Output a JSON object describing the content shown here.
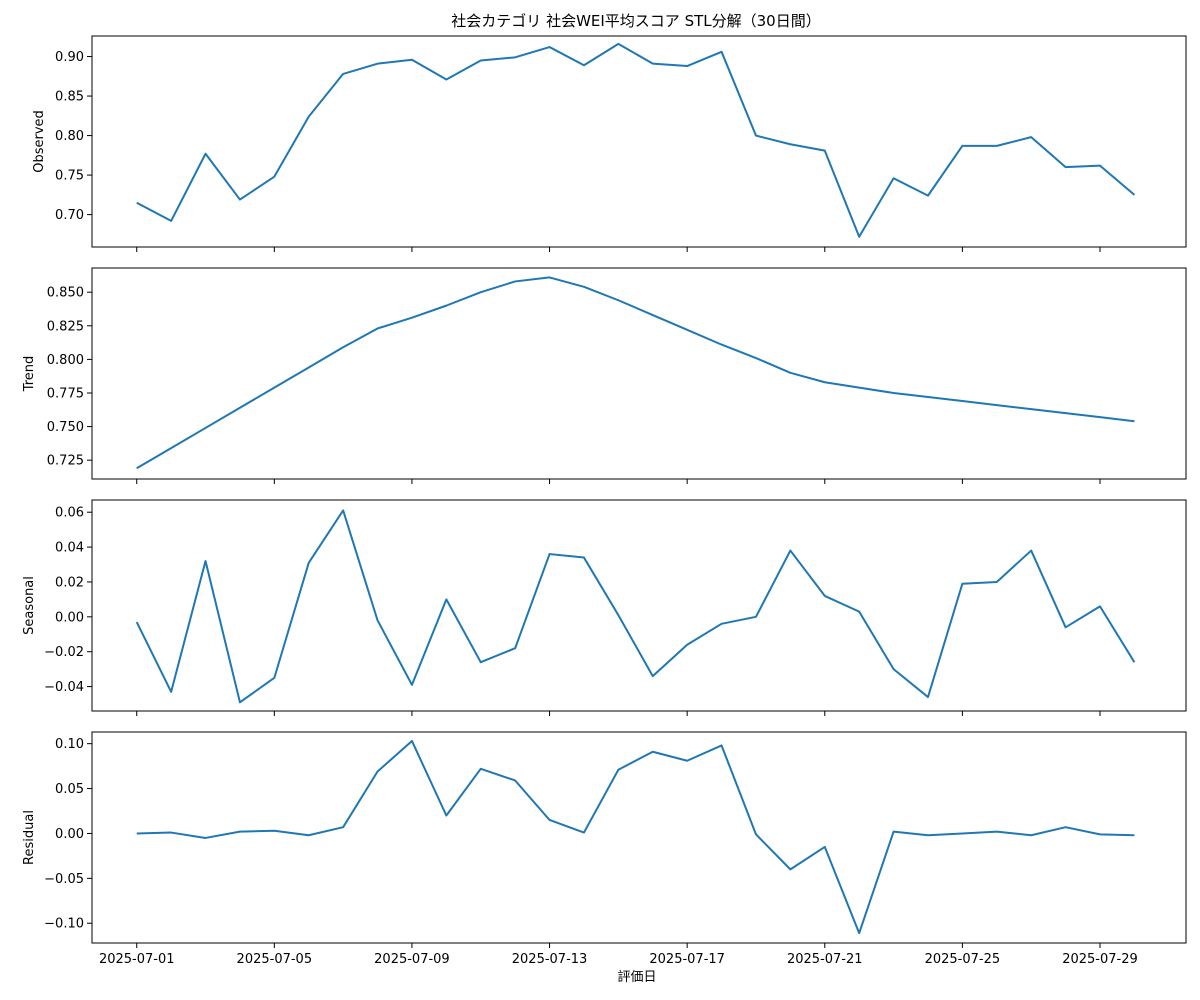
{
  "chart_data": {
    "type": "line",
    "title": "社会カテゴリ 社会WEI平均スコア STL分解（30日間）",
    "xlabel": "評価日",
    "line_color": "#1f77b4",
    "x": [
      "2025-07-01",
      "2025-07-02",
      "2025-07-03",
      "2025-07-04",
      "2025-07-05",
      "2025-07-06",
      "2025-07-07",
      "2025-07-08",
      "2025-07-09",
      "2025-07-10",
      "2025-07-11",
      "2025-07-12",
      "2025-07-13",
      "2025-07-14",
      "2025-07-15",
      "2025-07-16",
      "2025-07-17",
      "2025-07-18",
      "2025-07-19",
      "2025-07-20",
      "2025-07-21",
      "2025-07-22",
      "2025-07-23",
      "2025-07-24",
      "2025-07-25",
      "2025-07-26",
      "2025-07-27",
      "2025-07-28",
      "2025-07-29",
      "2025-07-30"
    ],
    "x_ticks": [
      "2025-07-01",
      "2025-07-05",
      "2025-07-09",
      "2025-07-13",
      "2025-07-17",
      "2025-07-21",
      "2025-07-25",
      "2025-07-29"
    ],
    "x_range": [
      "2025-06-29.7",
      "2025-07-31.5"
    ],
    "panels": [
      {
        "ylabel": "Observed",
        "ylim": [
          0.659,
          0.926
        ],
        "yticks": [
          0.7,
          0.75,
          0.8,
          0.85,
          0.9
        ],
        "tick_labels": [
          "0.70",
          "0.75",
          "0.80",
          "0.85",
          "0.90"
        ],
        "values": [
          0.715,
          0.692,
          0.777,
          0.719,
          0.748,
          0.824,
          0.878,
          0.891,
          0.896,
          0.871,
          0.895,
          0.899,
          0.912,
          0.889,
          0.916,
          0.891,
          0.888,
          0.906,
          0.8,
          0.789,
          0.781,
          0.672,
          0.746,
          0.724,
          0.787,
          0.787,
          0.798,
          0.76,
          0.762,
          0.725
        ]
      },
      {
        "ylabel": "Trend",
        "ylim": [
          0.711,
          0.868
        ],
        "yticks": [
          0.725,
          0.75,
          0.775,
          0.8,
          0.825,
          0.85
        ],
        "tick_labels": [
          "0.725",
          "0.750",
          "0.775",
          "0.800",
          "0.825",
          "0.850"
        ],
        "values": [
          0.719,
          0.734,
          0.749,
          0.764,
          0.779,
          0.794,
          0.809,
          0.823,
          0.831,
          0.84,
          0.85,
          0.858,
          0.861,
          0.854,
          0.844,
          0.833,
          0.822,
          0.811,
          0.801,
          0.79,
          0.783,
          0.779,
          0.775,
          0.772,
          0.769,
          0.766,
          0.763,
          0.76,
          0.757,
          0.754
        ]
      },
      {
        "ylabel": "Seasonal",
        "ylim": [
          -0.054,
          0.067
        ],
        "yticks": [
          -0.04,
          -0.02,
          0.0,
          0.02,
          0.04,
          0.06
        ],
        "tick_labels": [
          "−0.04",
          "−0.02",
          "0.00",
          "0.02",
          "0.04",
          "0.06"
        ],
        "values": [
          -0.003,
          -0.043,
          0.032,
          -0.049,
          -0.035,
          0.031,
          0.061,
          -0.002,
          -0.039,
          0.01,
          -0.026,
          -0.018,
          0.036,
          0.034,
          0.001,
          -0.034,
          -0.016,
          -0.004,
          0.0,
          0.038,
          0.012,
          0.003,
          -0.03,
          -0.046,
          0.019,
          0.02,
          0.038,
          -0.006,
          0.006,
          -0.026
        ]
      },
      {
        "ylabel": "Residual",
        "ylim": [
          -0.122,
          0.113
        ],
        "yticks": [
          -0.1,
          -0.05,
          0.0,
          0.05,
          0.1
        ],
        "tick_labels": [
          "−0.10",
          "−0.05",
          "0.00",
          "0.05",
          "0.10"
        ],
        "values": [
          0.0,
          0.001,
          -0.005,
          0.002,
          0.003,
          -0.002,
          0.007,
          0.069,
          0.103,
          0.02,
          0.072,
          0.059,
          0.015,
          0.001,
          0.071,
          0.091,
          0.081,
          0.098,
          -0.001,
          -0.04,
          -0.015,
          -0.111,
          0.002,
          -0.002,
          0.0,
          0.002,
          -0.002,
          0.007,
          -0.001,
          -0.002
        ]
      }
    ]
  }
}
